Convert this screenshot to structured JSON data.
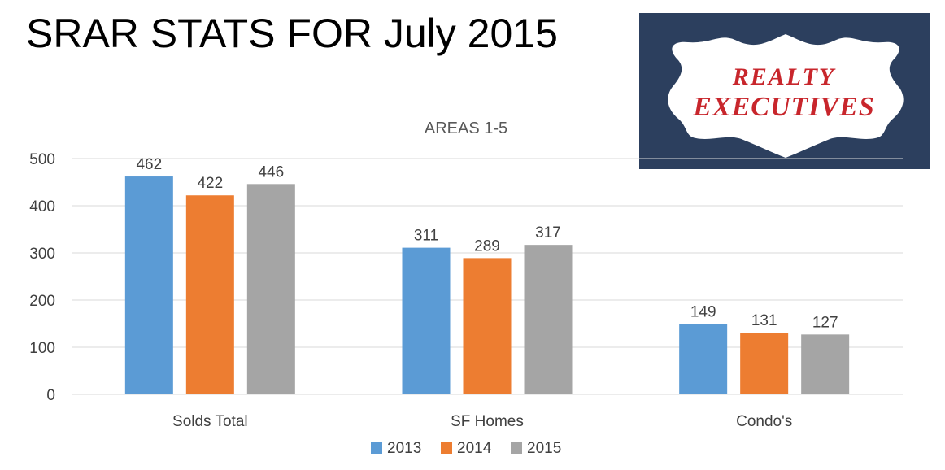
{
  "page": {
    "title": "SRAR STATS FOR July 2015"
  },
  "logo": {
    "line1": "REALTY",
    "line2": "EXECUTIVES",
    "background": "#2c3f5e",
    "text_color": "#c8262c"
  },
  "chart_data": {
    "type": "bar",
    "title": "AREAS 1-5",
    "categories": [
      "Solds Total",
      "SF Homes",
      "Condo's"
    ],
    "series": [
      {
        "name": "2013",
        "color": "#5b9bd5",
        "values": [
          462,
          311,
          149
        ]
      },
      {
        "name": "2014",
        "color": "#ed7d31",
        "values": [
          422,
          289,
          131
        ]
      },
      {
        "name": "2015",
        "color": "#a5a5a5",
        "values": [
          446,
          317,
          127
        ]
      }
    ],
    "ylim": [
      0,
      500
    ],
    "yticks": [
      0,
      100,
      200,
      300,
      400,
      500
    ],
    "xlabel": "",
    "ylabel": "",
    "grid": true,
    "legend": "bottom",
    "data_labels": true
  }
}
